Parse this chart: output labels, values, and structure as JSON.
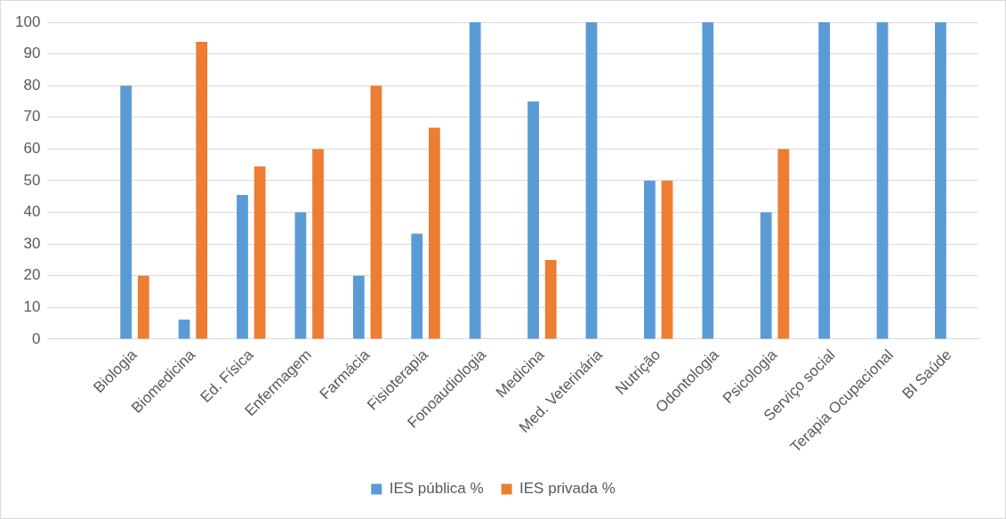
{
  "chart_data": {
    "type": "bar",
    "categories": [
      null,
      "Biologia",
      "Biomedicina",
      "Ed. Física",
      "Enfermagem",
      "Farmácia",
      "Fisioterapia",
      "Fonoaudiologia",
      "Medicina",
      "Med. Veterinária",
      "Nutrição",
      "Odontologia",
      "Psicologia",
      "Serviço social",
      "Terapia Ocupacional",
      "BI Saúde"
    ],
    "series": [
      {
        "name": "IES pública %",
        "color": "#5b9bd5",
        "values": [
          null,
          80,
          6.2,
          45.5,
          40,
          20,
          33.3,
          100,
          75,
          100,
          50,
          100,
          40,
          100,
          100,
          100
        ]
      },
      {
        "name": "IES privada %",
        "color": "#ed7d31",
        "values": [
          null,
          20,
          93.8,
          54.5,
          60,
          80,
          66.7,
          0,
          25,
          0,
          50,
          0,
          60,
          0,
          0,
          0
        ]
      }
    ],
    "ylim": [
      0,
      100
    ],
    "yticks": [
      0,
      10,
      20,
      30,
      40,
      50,
      60,
      70,
      80,
      90,
      100
    ],
    "grid": "y",
    "legend": "bottom"
  }
}
